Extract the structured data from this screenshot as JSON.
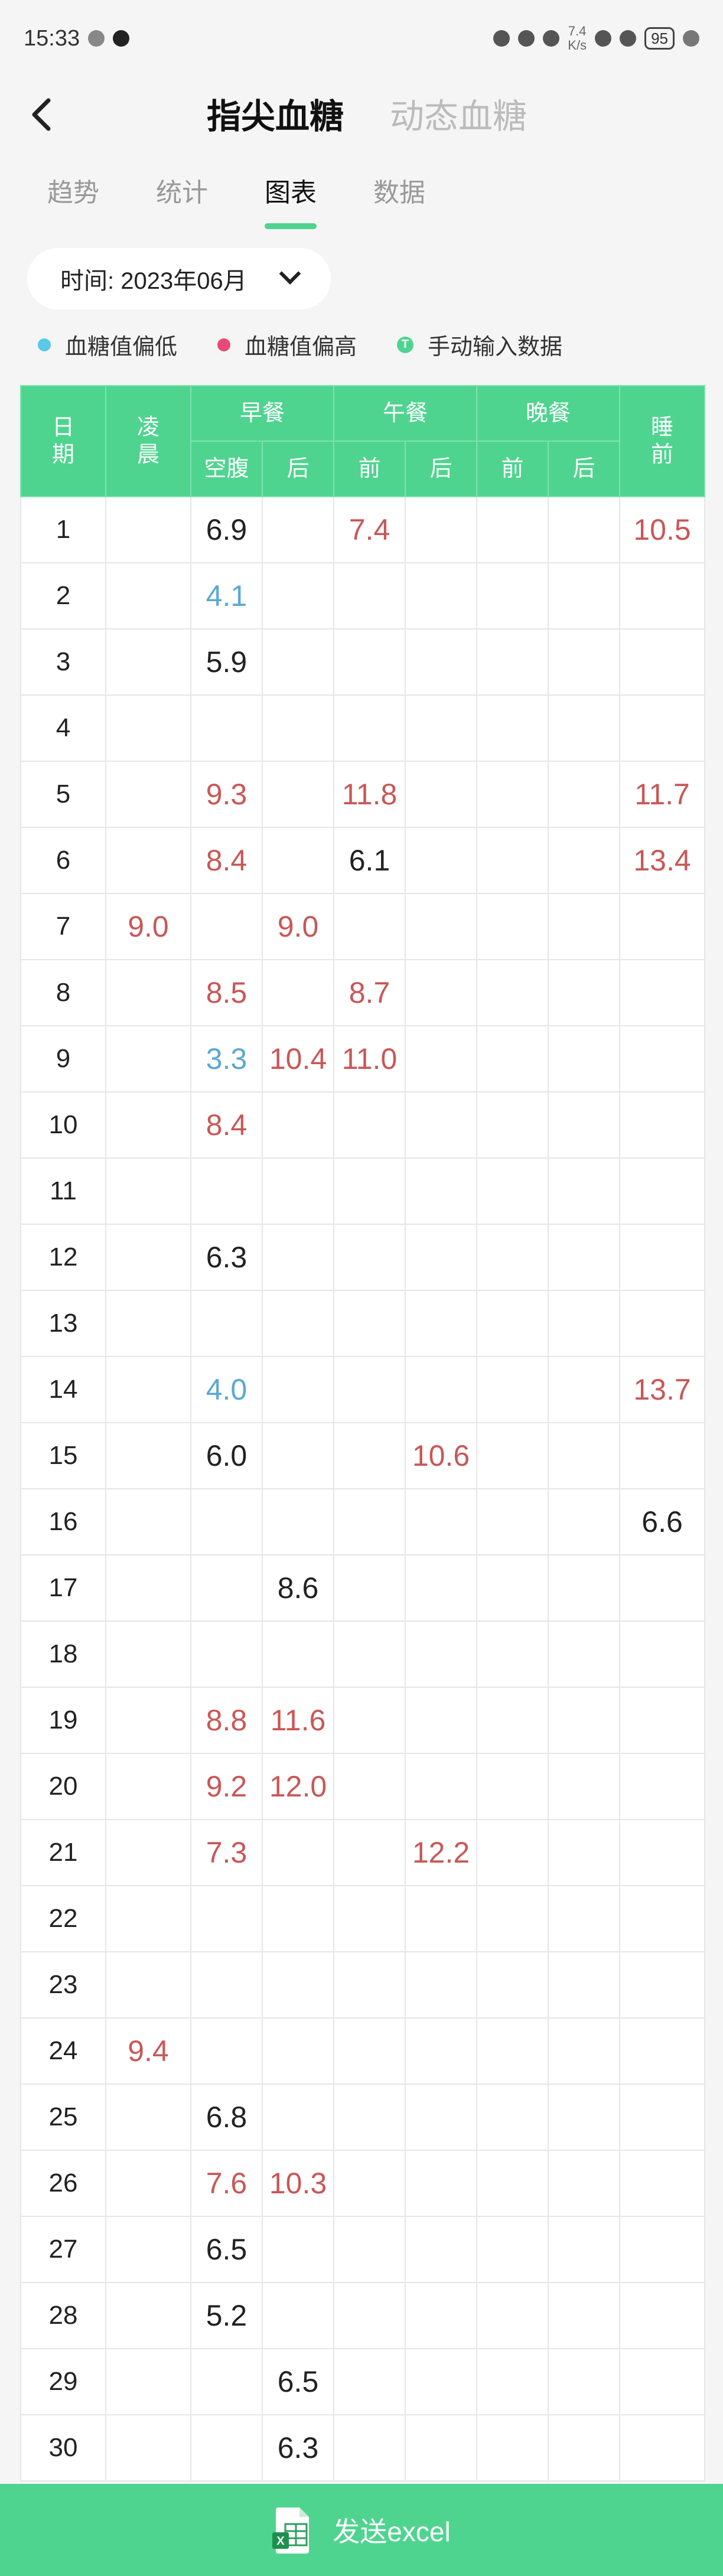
{
  "status_bar": {
    "time": "15:33",
    "net_speed_value": "7.4",
    "net_speed_unit": "K/s",
    "battery": "95"
  },
  "header": {
    "tabs": [
      {
        "label": "指尖血糖",
        "active": true
      },
      {
        "label": "动态血糖",
        "active": false
      }
    ]
  },
  "subtabs": [
    {
      "label": "趋势",
      "active": false
    },
    {
      "label": "统计",
      "active": false
    },
    {
      "label": "图表",
      "active": true
    },
    {
      "label": "数据",
      "active": false
    }
  ],
  "time_picker": {
    "label": "时间: 2023年06月"
  },
  "legend": {
    "low": {
      "label": "血糖值偏低",
      "color": "#5bc8e8"
    },
    "high": {
      "label": "血糖值偏高",
      "color": "#e8497a"
    },
    "manual": {
      "label": "手动输入数据",
      "icon_text": "T",
      "color": "#4fd48f"
    }
  },
  "table": {
    "head": {
      "day": "日\n期",
      "dawn": "凌\n晨",
      "breakfast": "早餐",
      "lunch": "午餐",
      "dinner": "晚餐",
      "bedtime": "睡\n前",
      "fasting": "空腹",
      "after": "后",
      "before": "前"
    },
    "rows": [
      {
        "day": "1",
        "cells": [
          "",
          "6.9",
          "",
          "7.4",
          "",
          "",
          "",
          "10.5"
        ],
        "flags": [
          "",
          "",
          "",
          "h",
          "",
          "",
          "",
          "h"
        ]
      },
      {
        "day": "2",
        "cells": [
          "",
          "4.1",
          "",
          "",
          "",
          "",
          "",
          ""
        ],
        "flags": [
          "",
          "l",
          "",
          "",
          "",
          "",
          "",
          ""
        ]
      },
      {
        "day": "3",
        "cells": [
          "",
          "5.9",
          "",
          "",
          "",
          "",
          "",
          ""
        ],
        "flags": [
          "",
          "",
          "",
          "",
          "",
          "",
          "",
          ""
        ]
      },
      {
        "day": "4",
        "cells": [
          "",
          "",
          "",
          "",
          "",
          "",
          "",
          ""
        ],
        "flags": [
          "",
          "",
          "",
          "",
          "",
          "",
          "",
          ""
        ]
      },
      {
        "day": "5",
        "cells": [
          "",
          "9.3",
          "",
          "11.8",
          "",
          "",
          "",
          "11.7"
        ],
        "flags": [
          "",
          "h",
          "",
          "h",
          "",
          "",
          "",
          "h"
        ]
      },
      {
        "day": "6",
        "cells": [
          "",
          "8.4",
          "",
          "6.1",
          "",
          "",
          "",
          "13.4"
        ],
        "flags": [
          "",
          "h",
          "",
          "",
          "",
          "",
          "",
          "h"
        ]
      },
      {
        "day": "7",
        "cells": [
          "9.0",
          "",
          "9.0",
          "",
          "",
          "",
          "",
          ""
        ],
        "flags": [
          "h",
          "",
          "h",
          "",
          "",
          "",
          "",
          ""
        ]
      },
      {
        "day": "8",
        "cells": [
          "",
          "8.5",
          "",
          "8.7",
          "",
          "",
          "",
          ""
        ],
        "flags": [
          "",
          "h",
          "",
          "h",
          "",
          "",
          "",
          ""
        ]
      },
      {
        "day": "9",
        "cells": [
          "",
          "3.3",
          "10.4",
          "11.0",
          "",
          "",
          "",
          ""
        ],
        "flags": [
          "",
          "l",
          "h",
          "h",
          "",
          "",
          "",
          ""
        ]
      },
      {
        "day": "10",
        "cells": [
          "",
          "8.4",
          "",
          "",
          "",
          "",
          "",
          ""
        ],
        "flags": [
          "",
          "h",
          "",
          "",
          "",
          "",
          "",
          ""
        ]
      },
      {
        "day": "11",
        "cells": [
          "",
          "",
          "",
          "",
          "",
          "",
          "",
          ""
        ],
        "flags": [
          "",
          "",
          "",
          "",
          "",
          "",
          "",
          ""
        ]
      },
      {
        "day": "12",
        "cells": [
          "",
          "6.3",
          "",
          "",
          "",
          "",
          "",
          ""
        ],
        "flags": [
          "",
          "",
          "",
          "",
          "",
          "",
          "",
          ""
        ]
      },
      {
        "day": "13",
        "cells": [
          "",
          "",
          "",
          "",
          "",
          "",
          "",
          ""
        ],
        "flags": [
          "",
          "",
          "",
          "",
          "",
          "",
          "",
          ""
        ]
      },
      {
        "day": "14",
        "cells": [
          "",
          "4.0",
          "",
          "",
          "",
          "",
          "",
          "13.7"
        ],
        "flags": [
          "",
          "l",
          "",
          "",
          "",
          "",
          "",
          "h"
        ]
      },
      {
        "day": "15",
        "cells": [
          "",
          "6.0",
          "",
          "",
          "10.6",
          "",
          "",
          ""
        ],
        "flags": [
          "",
          "",
          "",
          "",
          "h",
          "",
          "",
          ""
        ]
      },
      {
        "day": "16",
        "cells": [
          "",
          "",
          "",
          "",
          "",
          "",
          "",
          "6.6"
        ],
        "flags": [
          "",
          "",
          "",
          "",
          "",
          "",
          "",
          ""
        ]
      },
      {
        "day": "17",
        "cells": [
          "",
          "",
          "8.6",
          "",
          "",
          "",
          "",
          ""
        ],
        "flags": [
          "",
          "",
          "",
          "",
          "",
          "",
          "",
          ""
        ]
      },
      {
        "day": "18",
        "cells": [
          "",
          "",
          "",
          "",
          "",
          "",
          "",
          ""
        ],
        "flags": [
          "",
          "",
          "",
          "",
          "",
          "",
          "",
          ""
        ]
      },
      {
        "day": "19",
        "cells": [
          "",
          "8.8",
          "11.6",
          "",
          "",
          "",
          "",
          ""
        ],
        "flags": [
          "",
          "h",
          "h",
          "",
          "",
          "",
          "",
          ""
        ]
      },
      {
        "day": "20",
        "cells": [
          "",
          "9.2",
          "12.0",
          "",
          "",
          "",
          "",
          ""
        ],
        "flags": [
          "",
          "h",
          "h",
          "",
          "",
          "",
          "",
          ""
        ]
      },
      {
        "day": "21",
        "cells": [
          "",
          "7.3",
          "",
          "",
          "12.2",
          "",
          "",
          ""
        ],
        "flags": [
          "",
          "h",
          "",
          "",
          "h",
          "",
          "",
          ""
        ]
      },
      {
        "day": "22",
        "cells": [
          "",
          "",
          "",
          "",
          "",
          "",
          "",
          ""
        ],
        "flags": [
          "",
          "",
          "",
          "",
          "",
          "",
          "",
          ""
        ]
      },
      {
        "day": "23",
        "cells": [
          "",
          "",
          "",
          "",
          "",
          "",
          "",
          ""
        ],
        "flags": [
          "",
          "",
          "",
          "",
          "",
          "",
          "",
          ""
        ]
      },
      {
        "day": "24",
        "cells": [
          "9.4",
          "",
          "",
          "",
          "",
          "",
          "",
          ""
        ],
        "flags": [
          "h",
          "",
          "",
          "",
          "",
          "",
          "",
          ""
        ]
      },
      {
        "day": "25",
        "cells": [
          "",
          "6.8",
          "",
          "",
          "",
          "",
          "",
          ""
        ],
        "flags": [
          "",
          "",
          "",
          "",
          "",
          "",
          "",
          ""
        ]
      },
      {
        "day": "26",
        "cells": [
          "",
          "7.6",
          "10.3",
          "",
          "",
          "",
          "",
          ""
        ],
        "flags": [
          "",
          "h",
          "h",
          "",
          "",
          "",
          "",
          ""
        ]
      },
      {
        "day": "27",
        "cells": [
          "",
          "6.5",
          "",
          "",
          "",
          "",
          "",
          ""
        ],
        "flags": [
          "",
          "",
          "",
          "",
          "",
          "",
          "",
          ""
        ]
      },
      {
        "day": "28",
        "cells": [
          "",
          "5.2",
          "",
          "",
          "",
          "",
          "",
          ""
        ],
        "flags": [
          "",
          "",
          "",
          "",
          "",
          "",
          "",
          ""
        ]
      },
      {
        "day": "29",
        "cells": [
          "",
          "",
          "6.5",
          "",
          "",
          "",
          "",
          ""
        ],
        "flags": [
          "",
          "",
          "",
          "",
          "",
          "",
          "",
          ""
        ]
      },
      {
        "day": "30",
        "cells": [
          "",
          "",
          "6.3",
          "",
          "",
          "",
          "",
          ""
        ],
        "flags": [
          "",
          "",
          "",
          "",
          "",
          "",
          "",
          ""
        ]
      }
    ],
    "colors": {
      "high": "#c95757",
      "low": "#5aa8d6",
      "header": "#4fd48f"
    }
  },
  "send_bar": {
    "label": "发送excel",
    "icon_text": "X"
  }
}
